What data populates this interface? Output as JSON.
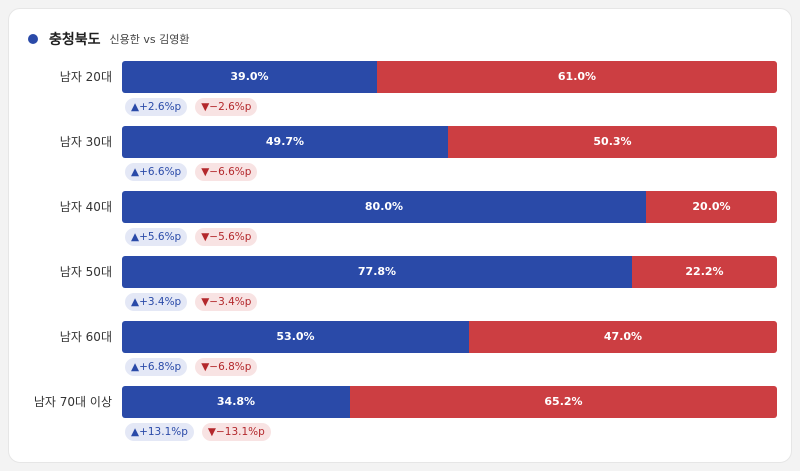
{
  "header": {
    "title": "충청북도",
    "subtitle": "신용한 vs 김영환"
  },
  "colors": {
    "candidate_a": "#2a4aa8",
    "candidate_b": "#cc3e42"
  },
  "chart_data": {
    "type": "bar",
    "stacked": true,
    "orientation": "horizontal",
    "title": "충청북도",
    "subtitle": "신용한 vs 김영환",
    "categories": [
      "남자 20대",
      "남자 30대",
      "남자 40대",
      "남자 50대",
      "남자 60대",
      "남자 70대 이상"
    ],
    "series": [
      {
        "name": "신용한",
        "values": [
          39.0,
          49.7,
          80.0,
          77.8,
          53.0,
          34.8
        ],
        "labels": [
          "39.0%",
          "49.7%",
          "80.0%",
          "77.8%",
          "53.0%",
          "34.8%"
        ],
        "change_labels": [
          "▲+2.6%p",
          "▲+6.6%p",
          "▲+5.6%p",
          "▲+3.4%p",
          "▲+6.8%p",
          "▲+13.1%p"
        ]
      },
      {
        "name": "김영환",
        "values": [
          61.0,
          50.3,
          20.0,
          22.2,
          47.0,
          65.2
        ],
        "labels": [
          "61.0%",
          "50.3%",
          "20.0%",
          "22.2%",
          "47.0%",
          "65.2%"
        ],
        "change_labels": [
          "▼−2.6%p",
          "▼−6.6%p",
          "▼−5.6%p",
          "▼−3.4%p",
          "▼−6.8%p",
          "▼−13.1%p"
        ]
      }
    ],
    "xlim": [
      0,
      100
    ]
  }
}
